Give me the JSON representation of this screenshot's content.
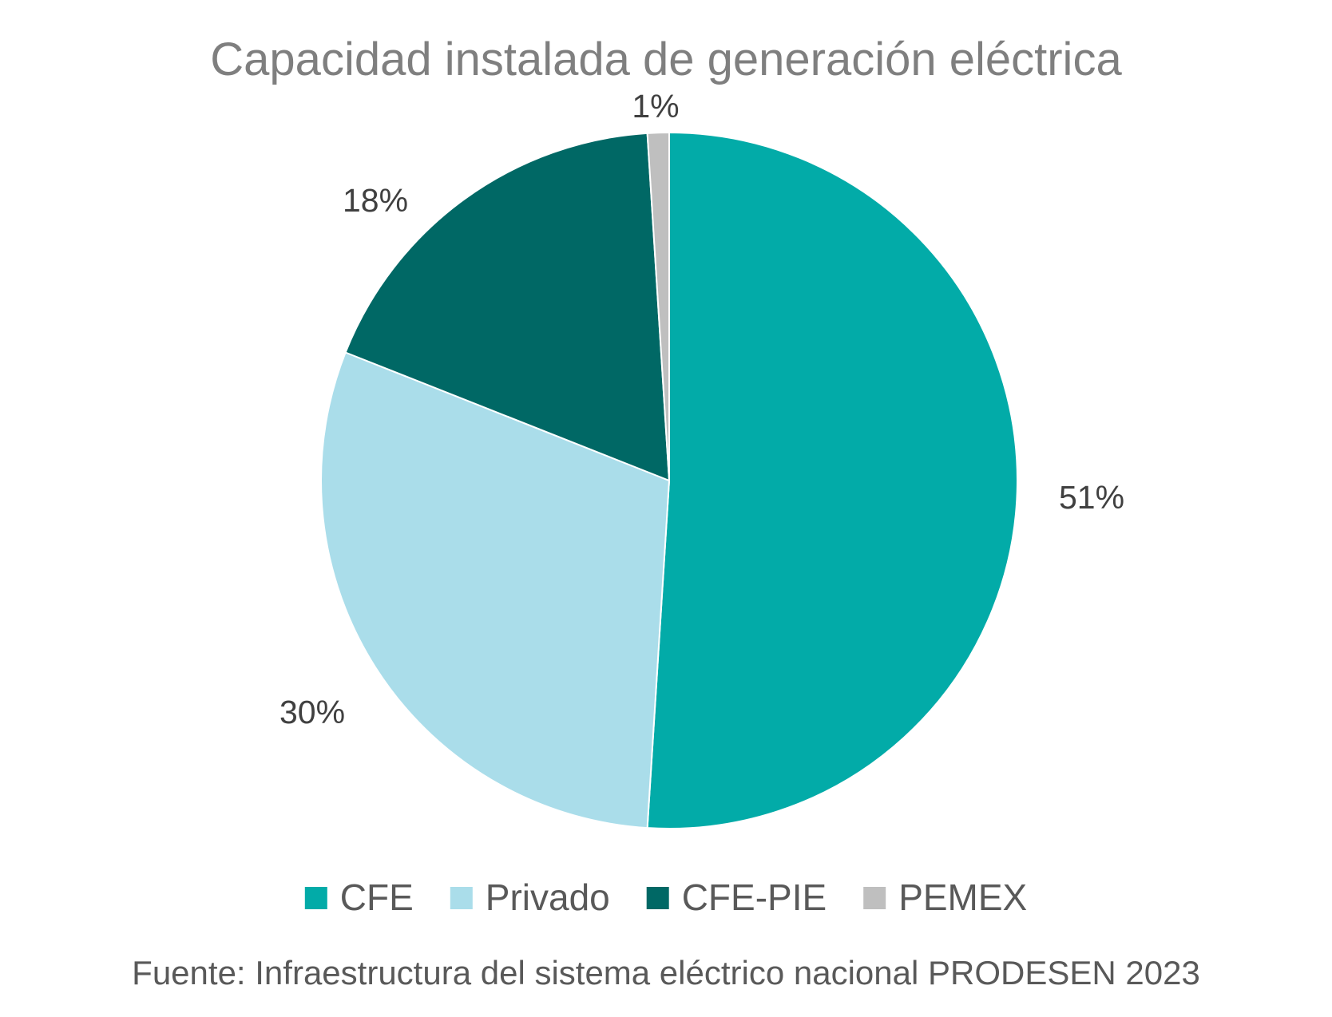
{
  "chart_data": {
    "type": "pie",
    "title": "Capacidad instalada de generación eléctrica",
    "categories": [
      "CFE",
      "Privado",
      "CFE-PIE",
      "PEMEX"
    ],
    "values": [
      51,
      30,
      18,
      1
    ],
    "data_labels": [
      "51%",
      "30%",
      "18%",
      "1%"
    ],
    "colors": [
      "#02aba8",
      "#aaddea",
      "#006865",
      "#bfbfbf"
    ],
    "start_angle_deg": 0,
    "direction": "clockwise",
    "legend": {
      "position": "bottom",
      "entries": [
        "CFE",
        "Privado",
        "CFE-PIE",
        "PEMEX"
      ]
    }
  },
  "source": "Fuente: Infraestructura del sistema eléctrico nacional PRODESEN 2023"
}
